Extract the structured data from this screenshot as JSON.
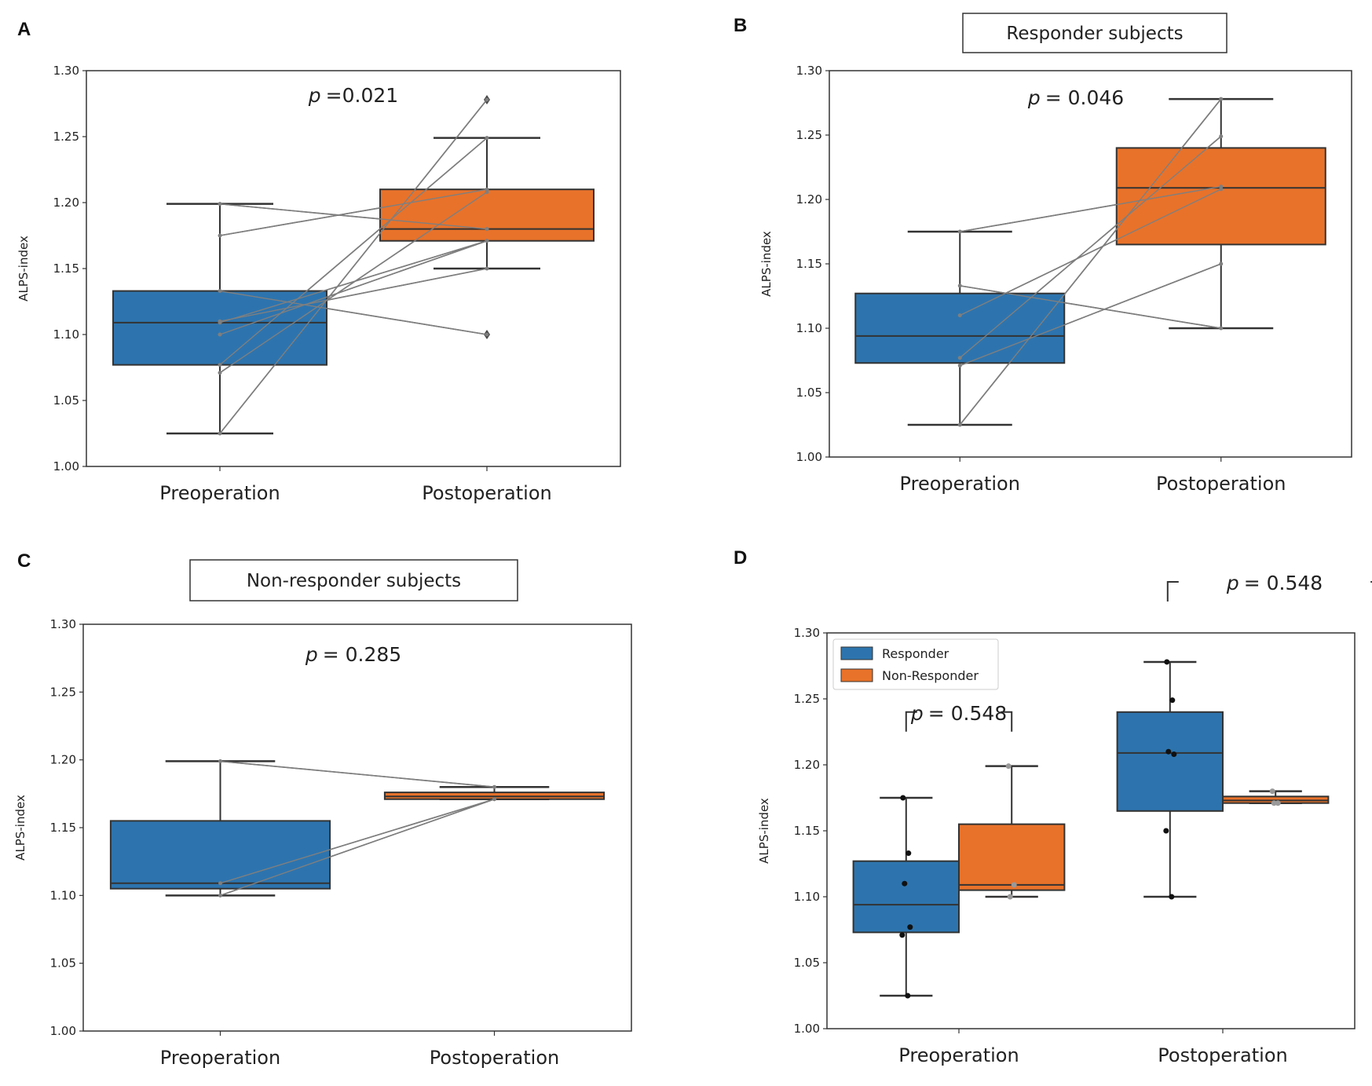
{
  "colors": {
    "responder_pre": "#2d74ae",
    "postoperation": "#e8722a",
    "pair_line": "#7f7f7f",
    "box_edge": "#333333"
  },
  "chart_data": [
    {
      "panel": "A",
      "type": "box",
      "title": "",
      "xlabel": "",
      "ylabel": "ALPS-index",
      "ylim": [
        1.0,
        1.3
      ],
      "yticks": [
        "1.00",
        "1.05",
        "1.10",
        "1.15",
        "1.20",
        "1.25",
        "1.30"
      ],
      "categories": [
        "Preoperation",
        "Postoperation"
      ],
      "p_text": {
        "symbol": "p",
        "value": "=0.021"
      },
      "boxes": [
        {
          "category": "Preoperation",
          "color": "#2d74ae",
          "q1": 1.077,
          "median": 1.109,
          "q3": 1.133,
          "whisker_low": 1.025,
          "whisker_high": 1.199,
          "outliers": []
        },
        {
          "category": "Postoperation",
          "color": "#e8722a",
          "q1": 1.171,
          "median": 1.18,
          "q3": 1.21,
          "whisker_low": 1.15,
          "whisker_high": 1.249,
          "outliers": [
            1.278,
            1.1
          ]
        }
      ],
      "pairs": [
        [
          1.199,
          1.18
        ],
        [
          1.175,
          1.21
        ],
        [
          1.133,
          1.1
        ],
        [
          1.11,
          1.15
        ],
        [
          1.1,
          1.171
        ],
        [
          1.109,
          1.171
        ],
        [
          1.077,
          1.249
        ],
        [
          1.071,
          1.208
        ],
        [
          1.025,
          1.278
        ]
      ]
    },
    {
      "panel": "B",
      "type": "box",
      "title": "Responder subjects",
      "xlabel": "",
      "ylabel": "ALPS-index",
      "ylim": [
        1.0,
        1.3
      ],
      "yticks": [
        "1.00",
        "1.05",
        "1.10",
        "1.15",
        "1.20",
        "1.25",
        "1.30"
      ],
      "categories": [
        "Preoperation",
        "Postoperation"
      ],
      "p_text": {
        "symbol": "p",
        "value": "= 0.046"
      },
      "boxes": [
        {
          "category": "Preoperation",
          "color": "#2d74ae",
          "q1": 1.073,
          "median": 1.094,
          "q3": 1.127,
          "whisker_low": 1.025,
          "whisker_high": 1.175,
          "outliers": []
        },
        {
          "category": "Postoperation",
          "color": "#e8722a",
          "q1": 1.165,
          "median": 1.209,
          "q3": 1.24,
          "whisker_low": 1.1,
          "whisker_high": 1.278,
          "outliers": []
        }
      ],
      "pairs": [
        [
          1.175,
          1.21
        ],
        [
          1.133,
          1.1
        ],
        [
          1.11,
          1.208
        ],
        [
          1.077,
          1.249
        ],
        [
          1.071,
          1.15
        ],
        [
          1.025,
          1.278
        ]
      ]
    },
    {
      "panel": "C",
      "type": "box",
      "title": "Non-responder subjects",
      "xlabel": "",
      "ylabel": "ALPS-index",
      "ylim": [
        1.0,
        1.3
      ],
      "yticks": [
        "1.00",
        "1.05",
        "1.10",
        "1.15",
        "1.20",
        "1.25",
        "1.30"
      ],
      "categories": [
        "Preoperation",
        "Postoperation"
      ],
      "p_text": {
        "symbol": "p",
        "value": "= 0.285"
      },
      "boxes": [
        {
          "category": "Preoperation",
          "color": "#2d74ae",
          "q1": 1.105,
          "median": 1.109,
          "q3": 1.155,
          "whisker_low": 1.1,
          "whisker_high": 1.199,
          "outliers": []
        },
        {
          "category": "Postoperation",
          "color": "#e8722a",
          "q1": 1.171,
          "median": 1.173,
          "q3": 1.176,
          "whisker_low": 1.171,
          "whisker_high": 1.18,
          "outliers": []
        }
      ],
      "pairs": [
        [
          1.199,
          1.18
        ],
        [
          1.1,
          1.171
        ],
        [
          1.109,
          1.171
        ]
      ]
    },
    {
      "panel": "D",
      "type": "grouped_box",
      "title": "",
      "xlabel": "",
      "ylabel": "ALPS-index",
      "ylim": [
        1.0,
        1.3
      ],
      "yticks": [
        "1.00",
        "1.05",
        "1.10",
        "1.15",
        "1.20",
        "1.25",
        "1.30"
      ],
      "categories": [
        "Preoperation",
        "Postoperation"
      ],
      "legend": {
        "position": "upper-left",
        "entries": [
          {
            "name": "Responder",
            "color": "#2d74ae"
          },
          {
            "name": "Non-Responder",
            "color": "#e8722a"
          }
        ]
      },
      "comparisons": [
        {
          "category": "Preoperation",
          "symbol": "p",
          "value": "= 0.548"
        },
        {
          "category": "Postoperation",
          "symbol": "p",
          "value": "= 0.548"
        }
      ],
      "series": [
        {
          "name": "Responder",
          "color": "#2d74ae",
          "boxes": [
            {
              "category": "Preoperation",
              "q1": 1.073,
              "median": 1.094,
              "q3": 1.127,
              "whisker_low": 1.025,
              "whisker_high": 1.175,
              "points": [
                1.175,
                1.133,
                1.11,
                1.077,
                1.071,
                1.025
              ]
            },
            {
              "category": "Postoperation",
              "q1": 1.165,
              "median": 1.209,
              "q3": 1.24,
              "whisker_low": 1.1,
              "whisker_high": 1.278,
              "points": [
                1.278,
                1.249,
                1.21,
                1.208,
                1.15,
                1.1
              ]
            }
          ]
        },
        {
          "name": "Non-Responder",
          "color": "#e8722a",
          "boxes": [
            {
              "category": "Preoperation",
              "q1": 1.105,
              "median": 1.109,
              "q3": 1.155,
              "whisker_low": 1.1,
              "whisker_high": 1.199,
              "points": [
                1.199,
                1.109,
                1.1
              ]
            },
            {
              "category": "Postoperation",
              "q1": 1.171,
              "median": 1.173,
              "q3": 1.176,
              "whisker_low": 1.171,
              "whisker_high": 1.18,
              "points": [
                1.18,
                1.171,
                1.171
              ]
            }
          ]
        }
      ]
    }
  ]
}
